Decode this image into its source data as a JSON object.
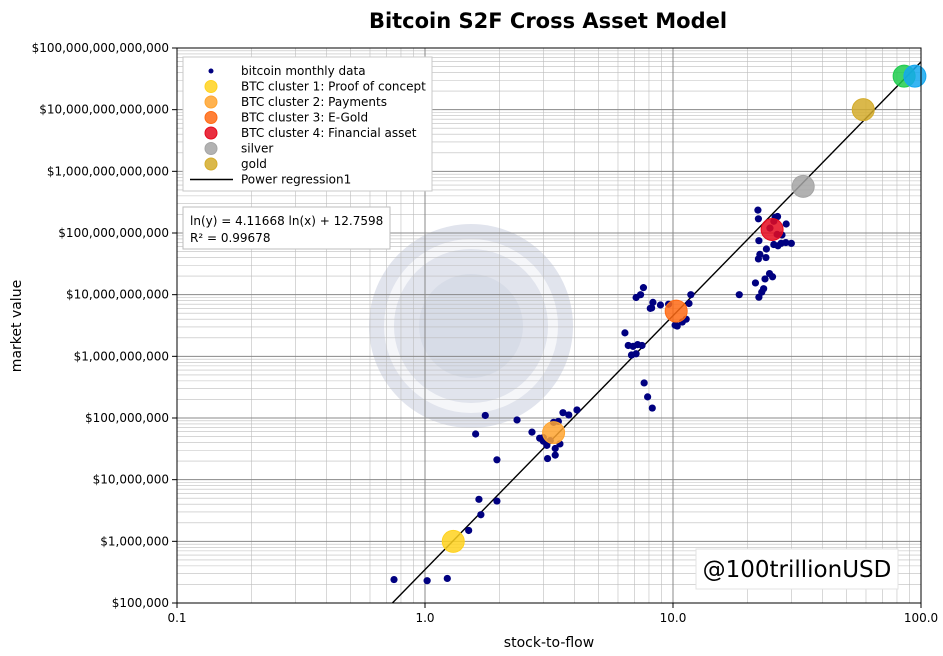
{
  "chart_data": {
    "type": "scatter",
    "title": "Bitcoin S2F Cross Asset Model",
    "xlabel": "stock-to-flow",
    "ylabel": "market value",
    "x_scale": "log",
    "y_scale": "log",
    "xlim": [
      0.1,
      100
    ],
    "ylim": [
      100000,
      100000000000000
    ],
    "grid": true,
    "x_ticks": [
      {
        "value": 0.1,
        "label": "0.1"
      },
      {
        "value": 1,
        "label": "1.0"
      },
      {
        "value": 10,
        "label": "10.0"
      },
      {
        "value": 100,
        "label": "100.0"
      }
    ],
    "y_ticks": [
      {
        "value": 100000,
        "label": "$100,000"
      },
      {
        "value": 1000000,
        "label": "$1,000,000"
      },
      {
        "value": 10000000,
        "label": "$10,000,000"
      },
      {
        "value": 100000000,
        "label": "$100,000,000"
      },
      {
        "value": 1000000000,
        "label": "$1,000,000,000"
      },
      {
        "value": 10000000000,
        "label": "$10,000,000,000"
      },
      {
        "value": 100000000000,
        "label": "$100,000,000,000"
      },
      {
        "value": 1000000000000,
        "label": "$1,000,000,000,000"
      },
      {
        "value": 10000000000000,
        "label": "$10,000,000,000,000"
      },
      {
        "value": 100000000000000,
        "label": "$100,000,000,000,000"
      }
    ],
    "legend_position": "top-left",
    "legend": [
      {
        "label": "bitcoin monthly data",
        "color": "#000080",
        "marker": "small-dot"
      },
      {
        "label": "BTC cluster 1: Proof of concept",
        "color": "#ffd21e",
        "marker": "circle"
      },
      {
        "label": "BTC cluster 2: Payments",
        "color": "#ffa530",
        "marker": "circle"
      },
      {
        "label": "BTC cluster 3: E-Gold",
        "color": "#ff6a14",
        "marker": "circle"
      },
      {
        "label": "BTC cluster 4: Financial asset",
        "color": "#e50a1e",
        "marker": "circle"
      },
      {
        "label": "silver",
        "color": "#a5a5a5",
        "marker": "circle"
      },
      {
        "label": "gold",
        "color": "#d4ac2b",
        "marker": "circle"
      },
      {
        "label": "Power regression1",
        "color": "#000000",
        "marker": "line"
      }
    ],
    "equation_lines": [
      "ln(y) = 4.11668 ln(x) + 12.7598",
      "R² = 0.99678"
    ],
    "watermark_handle": "@100trillionUSD",
    "regression": {
      "slope": 4.11668,
      "intercept": 12.7598
    },
    "series": [
      {
        "name": "bitcoin monthly data",
        "color": "#000080",
        "points": [
          [
            0.75,
            240000
          ],
          [
            1.02,
            230000
          ],
          [
            1.23,
            250000
          ],
          [
            1.5,
            1500000
          ],
          [
            1.68,
            2700000
          ],
          [
            1.65,
            4800000
          ],
          [
            1.95,
            4500000
          ],
          [
            1.95,
            21000000
          ],
          [
            1.6,
            55000000
          ],
          [
            1.75,
            110000000
          ],
          [
            2.35,
            93000000
          ],
          [
            2.7,
            59000000
          ],
          [
            2.9,
            47000000
          ],
          [
            3.0,
            42000000
          ],
          [
            3.12,
            22000000
          ],
          [
            3.35,
            25000000
          ],
          [
            3.2,
            43000000
          ],
          [
            3.3,
            85000000
          ],
          [
            3.45,
            88000000
          ],
          [
            3.6,
            122000000
          ],
          [
            3.8,
            112000000
          ],
          [
            4.1,
            135000000
          ],
          [
            3.35,
            32000000
          ],
          [
            3.5,
            38000000
          ],
          [
            3.1,
            36000000
          ],
          [
            3.0,
            48000000
          ],
          [
            6.4,
            2400000000
          ],
          [
            6.6,
            1500000000
          ],
          [
            6.9,
            1450000000
          ],
          [
            6.8,
            1050000000
          ],
          [
            7.1,
            1100000000
          ],
          [
            7.5,
            1500000000
          ],
          [
            7.2,
            1550000000
          ],
          [
            7.65,
            370000000
          ],
          [
            7.9,
            220000000
          ],
          [
            8.25,
            145000000
          ],
          [
            7.1,
            9000000000
          ],
          [
            7.4,
            10000000000
          ],
          [
            7.6,
            13000000000
          ],
          [
            8.1,
            6000000000
          ],
          [
            8.3,
            7500000000
          ],
          [
            8.2,
            6100000000
          ],
          [
            8.9,
            6800000000
          ],
          [
            9.6,
            7000000000
          ],
          [
            10.2,
            3200000000
          ],
          [
            10.4,
            3100000000
          ],
          [
            10.9,
            3600000000
          ],
          [
            11.3,
            4000000000
          ],
          [
            11.6,
            7200000000
          ],
          [
            11.8,
            10000000000
          ],
          [
            18.5,
            10000000000
          ],
          [
            22.2,
            9100000000
          ],
          [
            22.8,
            11000000000
          ],
          [
            23.2,
            12500000000
          ],
          [
            21.5,
            15500000000
          ],
          [
            23.5,
            18000000000
          ],
          [
            24.5,
            22000000000
          ],
          [
            25.2,
            19500000000
          ],
          [
            23.7,
            40000000000
          ],
          [
            22.1,
            38000000000
          ],
          [
            22.4,
            45000000000
          ],
          [
            23.8,
            55000000000
          ],
          [
            22.2,
            75000000000
          ],
          [
            25.5,
            65000000000
          ],
          [
            26.5,
            62000000000
          ],
          [
            27.3,
            68000000000
          ],
          [
            28.5,
            70000000000
          ],
          [
            30.0,
            68000000000
          ],
          [
            27.5,
            93000000000
          ],
          [
            28.6,
            140000000000
          ],
          [
            26.3,
            95000000000
          ],
          [
            24.6,
            120000000000
          ],
          [
            22.1,
            170000000000
          ],
          [
            22.0,
            235000000000
          ],
          [
            25.8,
            180000000000
          ],
          [
            26.4,
            185000000000
          ],
          [
            25.5,
            155000000000
          ]
        ]
      },
      {
        "name": "BTC cluster 1: Proof of concept",
        "color": "#ffd21e",
        "points": [
          [
            1.3,
            1000000
          ]
        ]
      },
      {
        "name": "BTC cluster 2: Payments",
        "color": "#ffa530",
        "points": [
          [
            3.3,
            58000000
          ]
        ]
      },
      {
        "name": "BTC cluster 3: E-Gold",
        "color": "#ff6a14",
        "points": [
          [
            10.3,
            5400000000
          ]
        ]
      },
      {
        "name": "BTC cluster 4: Financial asset",
        "color": "#e50a1e",
        "points": [
          [
            25.1,
            114000000000
          ]
        ]
      },
      {
        "name": "silver",
        "color": "#a5a5a5",
        "points": [
          [
            33.5,
            570000000000
          ]
        ]
      },
      {
        "name": "gold",
        "color": "#d4ac2b",
        "points": [
          [
            58.5,
            10000000000000
          ]
        ]
      },
      {
        "name": "",
        "color": "#1ecc4e",
        "points": [
          [
            85.5,
            35000000000000
          ]
        ]
      },
      {
        "name": "",
        "color": "#14a8f0",
        "points": [
          [
            94.5,
            35000000000000
          ]
        ]
      }
    ]
  }
}
